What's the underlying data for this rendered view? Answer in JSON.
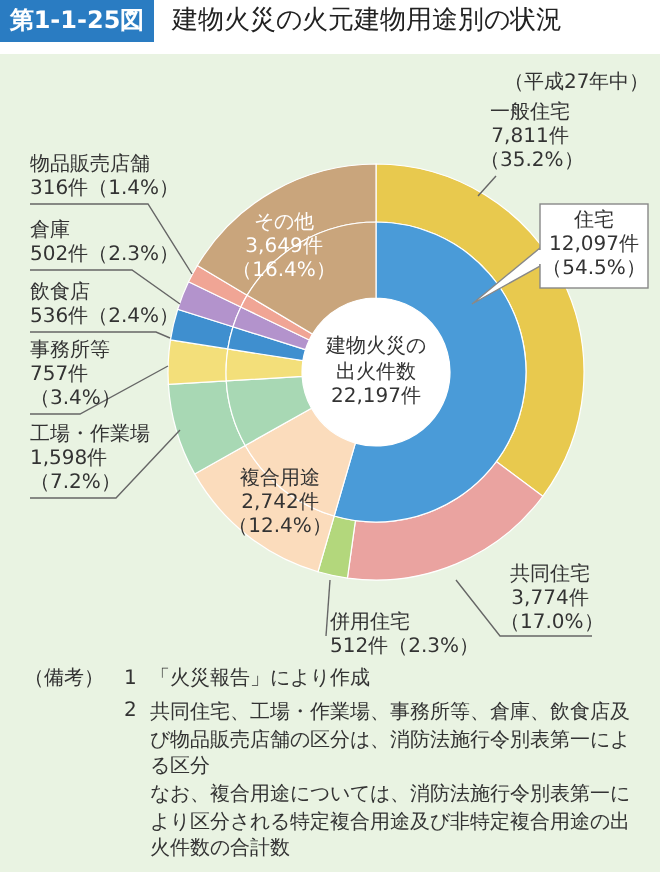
{
  "chart_data": [
    {
      "type": "donut",
      "title": "建物火災の火元建物用途別の状況",
      "categories": [
        "一般住宅",
        "共同住宅",
        "併用住宅",
        "複合用途",
        "工場・作業場",
        "事務所等",
        "飲食店",
        "倉庫",
        "物品販売店舗",
        "その他"
      ],
      "values": [
        7811,
        3774,
        512,
        2742,
        1598,
        757,
        536,
        502,
        316,
        3649
      ],
      "value_labels": [
        "7,811件（35.2%）",
        "3,774件（17.0%）",
        "512件（2.3%）",
        "2,742件（12.4%）",
        "1,598件（7.2%）",
        "757件（3.4%）",
        "536件（2.4%）",
        "502件（2.3%）",
        "316件（1.4%）",
        "3,649件（16.4%）"
      ],
      "colors": [
        "#e8c94e",
        "#eaa3a0",
        "#b3d77c",
        "#fbdcbc",
        "#a8d8b4",
        "#f3df7a",
        "#3f8fcf",
        "#b393cc",
        "#f0a595",
        "#c9a57c"
      ],
      "annotations": [
        "第1-1-25図",
        "（平成27年中）",
        "（備考）",
        "1",
        "「火災報告」により作成",
        "2",
        "共同住宅、工場・作業場、事務所等、倉庫、飲食店及び物品販売店舗の区分は、消防法施行令別表第一による区分",
        "なお、複合用途については、消防法施行令別表第一により区分される特定複合用途及び非特定複合用途の出火件数の合計数"
      ]
    },
    {
      "type": "donut",
      "categories": [
        "住宅",
        null,
        null,
        null,
        null,
        null,
        null,
        null
      ],
      "values": [
        12097,
        2742,
        1598,
        757,
        536,
        502,
        316,
        3649
      ],
      "value_labels": [
        "12,097件（54.5%）",
        null,
        null,
        null,
        null,
        null,
        null,
        null
      ],
      "colors": [
        "#4a9bd8",
        "#fbdcbc",
        "#a8d8b4",
        "#f3df7a",
        "#3f8fcf",
        "#b393cc",
        "#f0a595",
        "#c9a57c"
      ],
      "annotations": [
        "建物火災の出火件数",
        "22,197件"
      ]
    }
  ]
}
